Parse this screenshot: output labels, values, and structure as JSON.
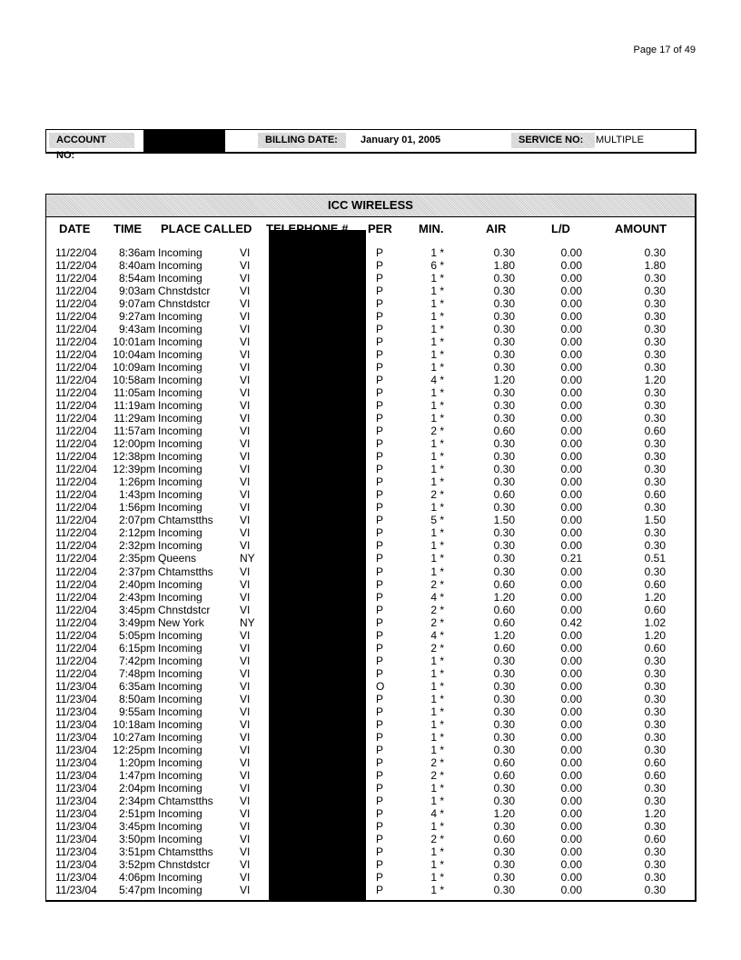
{
  "page_number": "Page 17  of  49",
  "account": {
    "account_label": "ACCOUNT NO:",
    "billing_label": "BILLING DATE:",
    "billing_date": "January  01, 2005",
    "service_label": "SERVICE NO:",
    "service_value": "MULTIPLE"
  },
  "table": {
    "title": "ICC WIRELESS",
    "columns": [
      "DATE",
      "TIME",
      "PLACE CALLED",
      "TELEPHONE #",
      "PER",
      "MIN.",
      "AIR",
      "L/D",
      "AMOUNT"
    ],
    "rows": [
      [
        "11/22/04",
        "8:36am",
        "Incoming",
        "VI",
        "P",
        "1 *",
        "0.30",
        "0.00",
        "0.30"
      ],
      [
        "11/22/04",
        "8:40am",
        "Incoming",
        "VI",
        "P",
        "6 *",
        "1.80",
        "0.00",
        "1.80"
      ],
      [
        "11/22/04",
        "8:54am",
        "Incoming",
        "VI",
        "P",
        "1 *",
        "0.30",
        "0.00",
        "0.30"
      ],
      [
        "11/22/04",
        "9:03am",
        "Chnstdstcr",
        "VI",
        "P",
        "1 *",
        "0.30",
        "0.00",
        "0.30"
      ],
      [
        "11/22/04",
        "9:07am",
        "Chnstdstcr",
        "VI",
        "P",
        "1 *",
        "0.30",
        "0.00",
        "0.30"
      ],
      [
        "11/22/04",
        "9:27am",
        "Incoming",
        "VI",
        "P",
        "1 *",
        "0.30",
        "0.00",
        "0.30"
      ],
      [
        "11/22/04",
        "9:43am",
        "Incoming",
        "VI",
        "P",
        "1 *",
        "0.30",
        "0.00",
        "0.30"
      ],
      [
        "11/22/04",
        "10:01am",
        "Incoming",
        "VI",
        "P",
        "1 *",
        "0.30",
        "0.00",
        "0.30"
      ],
      [
        "11/22/04",
        "10:04am",
        "Incoming",
        "VI",
        "P",
        "1 *",
        "0.30",
        "0.00",
        "0.30"
      ],
      [
        "11/22/04",
        "10:09am",
        "Incoming",
        "VI",
        "P",
        "1 *",
        "0.30",
        "0.00",
        "0.30"
      ],
      [
        "11/22/04",
        "10:58am",
        "Incoming",
        "VI",
        "P",
        "4 *",
        "1.20",
        "0.00",
        "1.20"
      ],
      [
        "11/22/04",
        "11:05am",
        "Incoming",
        "VI",
        "P",
        "1 *",
        "0.30",
        "0.00",
        "0.30"
      ],
      [
        "11/22/04",
        "11:19am",
        "Incoming",
        "VI",
        "P",
        "1 *",
        "0.30",
        "0.00",
        "0.30"
      ],
      [
        "11/22/04",
        "11:29am",
        "Incoming",
        "VI",
        "P",
        "1 *",
        "0.30",
        "0.00",
        "0.30"
      ],
      [
        "11/22/04",
        "11:57am",
        "Incoming",
        "VI",
        "P",
        "2 *",
        "0.60",
        "0.00",
        "0.60"
      ],
      [
        "11/22/04",
        "12:00pm",
        "Incoming",
        "VI",
        "P",
        "1 *",
        "0.30",
        "0.00",
        "0.30"
      ],
      [
        "11/22/04",
        "12:38pm",
        "Incoming",
        "VI",
        "P",
        "1 *",
        "0.30",
        "0.00",
        "0.30"
      ],
      [
        "11/22/04",
        "12:39pm",
        "Incoming",
        "VI",
        "P",
        "1 *",
        "0.30",
        "0.00",
        "0.30"
      ],
      [
        "11/22/04",
        "1:26pm",
        "Incoming",
        "VI",
        "P",
        "1 *",
        "0.30",
        "0.00",
        "0.30"
      ],
      [
        "11/22/04",
        "1:43pm",
        "Incoming",
        "VI",
        "P",
        "2 *",
        "0.60",
        "0.00",
        "0.60"
      ],
      [
        "11/22/04",
        "1:56pm",
        "Incoming",
        "VI",
        "P",
        "1 *",
        "0.30",
        "0.00",
        "0.30"
      ],
      [
        "11/22/04",
        "2:07pm",
        "Chtamstths",
        "VI",
        "P",
        "5 *",
        "1.50",
        "0.00",
        "1.50"
      ],
      [
        "11/22/04",
        "2:12pm",
        "Incoming",
        "VI",
        "P",
        "1 *",
        "0.30",
        "0.00",
        "0.30"
      ],
      [
        "11/22/04",
        "2:32pm",
        "Incoming",
        "VI",
        "P",
        "1 *",
        "0.30",
        "0.00",
        "0.30"
      ],
      [
        "11/22/04",
        "2:35pm",
        "Queens",
        "NY",
        "P",
        "1 *",
        "0.30",
        "0.21",
        "0.51"
      ],
      [
        "11/22/04",
        "2:37pm",
        "Chtamstths",
        "VI",
        "P",
        "1 *",
        "0.30",
        "0.00",
        "0.30"
      ],
      [
        "11/22/04",
        "2:40pm",
        "Incoming",
        "VI",
        "P",
        "2 *",
        "0.60",
        "0.00",
        "0.60"
      ],
      [
        "11/22/04",
        "2:43pm",
        "Incoming",
        "VI",
        "P",
        "4 *",
        "1.20",
        "0.00",
        "1.20"
      ],
      [
        "11/22/04",
        "3:45pm",
        "Chnstdstcr",
        "VI",
        "P",
        "2 *",
        "0.60",
        "0.00",
        "0.60"
      ],
      [
        "11/22/04",
        "3:49pm",
        "New York",
        "NY",
        "P",
        "2 *",
        "0.60",
        "0.42",
        "1.02"
      ],
      [
        "11/22/04",
        "5:05pm",
        "Incoming",
        "VI",
        "P",
        "4 *",
        "1.20",
        "0.00",
        "1.20"
      ],
      [
        "11/22/04",
        "6:15pm",
        "Incoming",
        "VI",
        "P",
        "2 *",
        "0.60",
        "0.00",
        "0.60"
      ],
      [
        "11/22/04",
        "7:42pm",
        "Incoming",
        "VI",
        "P",
        "1 *",
        "0.30",
        "0.00",
        "0.30"
      ],
      [
        "11/22/04",
        "7:48pm",
        "Incoming",
        "VI",
        "P",
        "1 *",
        "0.30",
        "0.00",
        "0.30"
      ],
      [
        "11/23/04",
        "6:35am",
        "Incoming",
        "VI",
        "O",
        "1 *",
        "0.30",
        "0.00",
        "0.30"
      ],
      [
        "11/23/04",
        "8:50am",
        "Incoming",
        "VI",
        "P",
        "1 *",
        "0.30",
        "0.00",
        "0.30"
      ],
      [
        "11/23/04",
        "9:55am",
        "Incoming",
        "VI",
        "P",
        "1 *",
        "0.30",
        "0.00",
        "0.30"
      ],
      [
        "11/23/04",
        "10:18am",
        "Incoming",
        "VI",
        "P",
        "1 *",
        "0.30",
        "0.00",
        "0.30"
      ],
      [
        "11/23/04",
        "10:27am",
        "Incoming",
        "VI",
        "P",
        "1 *",
        "0.30",
        "0.00",
        "0.30"
      ],
      [
        "11/23/04",
        "12:25pm",
        "Incoming",
        "VI",
        "P",
        "1 *",
        "0.30",
        "0.00",
        "0.30"
      ],
      [
        "11/23/04",
        "1:20pm",
        "Incoming",
        "VI",
        "P",
        "2 *",
        "0.60",
        "0.00",
        "0.60"
      ],
      [
        "11/23/04",
        "1:47pm",
        "Incoming",
        "VI",
        "P",
        "2 *",
        "0.60",
        "0.00",
        "0.60"
      ],
      [
        "11/23/04",
        "2:04pm",
        "Incoming",
        "VI",
        "P",
        "1 *",
        "0.30",
        "0.00",
        "0.30"
      ],
      [
        "11/23/04",
        "2:34pm",
        "Chtamstths",
        "VI",
        "P",
        "1 *",
        "0.30",
        "0.00",
        "0.30"
      ],
      [
        "11/23/04",
        "2:51pm",
        "Incoming",
        "VI",
        "P",
        "4 *",
        "1.20",
        "0.00",
        "1.20"
      ],
      [
        "11/23/04",
        "3:45pm",
        "Incoming",
        "VI",
        "P",
        "1 *",
        "0.30",
        "0.00",
        "0.30"
      ],
      [
        "11/23/04",
        "3:50pm",
        "Incoming",
        "VI",
        "P",
        "2 *",
        "0.60",
        "0.00",
        "0.60"
      ],
      [
        "11/23/04",
        "3:51pm",
        "Chtamstths",
        "VI",
        "P",
        "1 *",
        "0.30",
        "0.00",
        "0.30"
      ],
      [
        "11/23/04",
        "3:52pm",
        "Chnstdstcr",
        "VI",
        "P",
        "1 *",
        "0.30",
        "0.00",
        "0.30"
      ],
      [
        "11/23/04",
        "4:06pm",
        "Incoming",
        "VI",
        "P",
        "1 *",
        "0.30",
        "0.00",
        "0.30"
      ],
      [
        "11/23/04",
        "5:47pm",
        "Incoming",
        "VI",
        "P",
        "1 *",
        "0.30",
        "0.00",
        "0.30"
      ]
    ]
  }
}
